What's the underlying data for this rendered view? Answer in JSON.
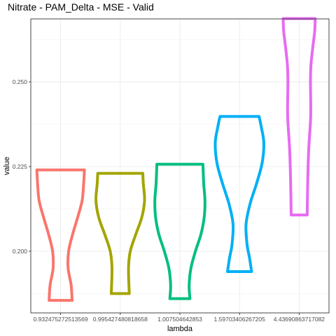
{
  "chart_data": {
    "type": "violin",
    "title": "Nitrate - PAM_Delta - MSE - Valid",
    "xlabel": "lambda",
    "ylabel": "value",
    "ylim": [
      0.1818,
      0.2686
    ],
    "yticks": [
      0.2,
      0.225,
      0.25
    ],
    "ytick_labels": [
      "0.200",
      "0.225",
      "0.250"
    ],
    "grid": true,
    "legend": "none",
    "categories": [
      "0.932475272513569",
      "0.995427480818658",
      "1.007504642853",
      "1.59703406267205",
      "4.43690863717082"
    ],
    "violins": [
      {
        "category": "0.932475272513569",
        "color": "#F8766D",
        "min": 0.1855,
        "max": 0.224,
        "profile": [
          [
            0.1855,
            0.46
          ],
          [
            0.19,
            0.42
          ],
          [
            0.195,
            0.3
          ],
          [
            0.2,
            0.32
          ],
          [
            0.205,
            0.48
          ],
          [
            0.21,
            0.68
          ],
          [
            0.215,
            0.86
          ],
          [
            0.22,
            0.92
          ],
          [
            0.224,
            0.95
          ]
        ]
      },
      {
        "category": "0.995427480818658",
        "color": "#A3A500",
        "min": 0.1875,
        "max": 0.223,
        "profile": [
          [
            0.1875,
            0.36
          ],
          [
            0.195,
            0.33
          ],
          [
            0.2,
            0.4
          ],
          [
            0.205,
            0.62
          ],
          [
            0.21,
            0.86
          ],
          [
            0.215,
            0.97
          ],
          [
            0.22,
            0.92
          ],
          [
            0.223,
            0.9
          ]
        ]
      },
      {
        "category": "1.007504642853",
        "color": "#00BF7D",
        "min": 0.186,
        "max": 0.2257,
        "profile": [
          [
            0.186,
            0.4
          ],
          [
            0.19,
            0.37
          ],
          [
            0.195,
            0.44
          ],
          [
            0.2,
            0.62
          ],
          [
            0.205,
            0.84
          ],
          [
            0.21,
            0.97
          ],
          [
            0.215,
            1.0
          ],
          [
            0.22,
            0.95
          ],
          [
            0.2257,
            0.92
          ]
        ]
      },
      {
        "category": "1.59703406267205",
        "color": "#00B0F6",
        "min": 0.194,
        "max": 0.2398,
        "profile": [
          [
            0.194,
            0.48
          ],
          [
            0.198,
            0.4
          ],
          [
            0.202,
            0.3
          ],
          [
            0.208,
            0.26
          ],
          [
            0.214,
            0.42
          ],
          [
            0.22,
            0.68
          ],
          [
            0.226,
            0.9
          ],
          [
            0.232,
            0.97
          ],
          [
            0.237,
            0.86
          ],
          [
            0.2398,
            0.78
          ]
        ]
      },
      {
        "category": "4.43690863717082",
        "color": "#E76BF3",
        "min": 0.2107,
        "max": 0.2687,
        "profile": [
          [
            0.2107,
            0.32
          ],
          [
            0.22,
            0.34
          ],
          [
            0.23,
            0.38
          ],
          [
            0.24,
            0.46
          ],
          [
            0.25,
            0.45
          ],
          [
            0.255,
            0.47
          ],
          [
            0.26,
            0.54
          ],
          [
            0.265,
            0.62
          ],
          [
            0.2687,
            0.64
          ]
        ]
      }
    ]
  }
}
